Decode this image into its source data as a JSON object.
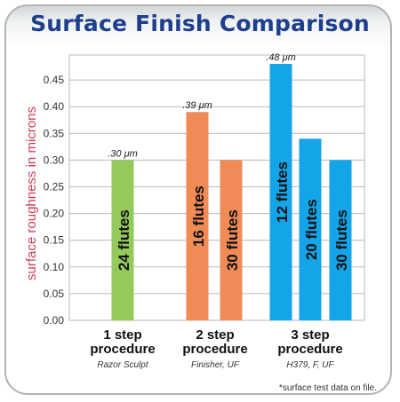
{
  "chart_data": {
    "type": "bar",
    "title": "Surface Finish Comparison",
    "ylabel": "surface roughness in microns",
    "ylim": [
      0,
      0.5
    ],
    "yticks": [
      "0.00",
      "0.05",
      "0.10",
      "0.15",
      "0.20",
      "0.25",
      "0.30",
      "0.35",
      "0.40",
      "0.45"
    ],
    "groups": [
      {
        "label": "1 step",
        "label2": "procedure",
        "sublabel": "Razor Sculpt",
        "color": "#94c95b",
        "bars": [
          {
            "label": "24 flutes",
            "value": 0.3,
            "annotation": ".30 μm"
          }
        ]
      },
      {
        "label": "2 step",
        "label2": "procedure",
        "sublabel": "Finisher, UF",
        "color": "#f08a57",
        "bars": [
          {
            "label": "16 flutes",
            "value": 0.39,
            "annotation": ".39 μm"
          },
          {
            "label": "30 flutes",
            "value": 0.3
          }
        ]
      },
      {
        "label": "3 step",
        "label2": "procedure",
        "sublabel": "H379, F, UF",
        "color": "#14a5e8",
        "bars": [
          {
            "label": "12 flutes",
            "value": 0.48,
            "annotation": ".48 μm"
          },
          {
            "label": "20 flutes",
            "value": 0.34
          },
          {
            "label": "30 flutes",
            "value": 0.3
          }
        ]
      }
    ],
    "grid": true,
    "footnote": "*surface test data on file.",
    "colors": {
      "title": "#1d3f8c",
      "ylabel": "#d13a5a",
      "grid": "#b9b9b9"
    }
  }
}
